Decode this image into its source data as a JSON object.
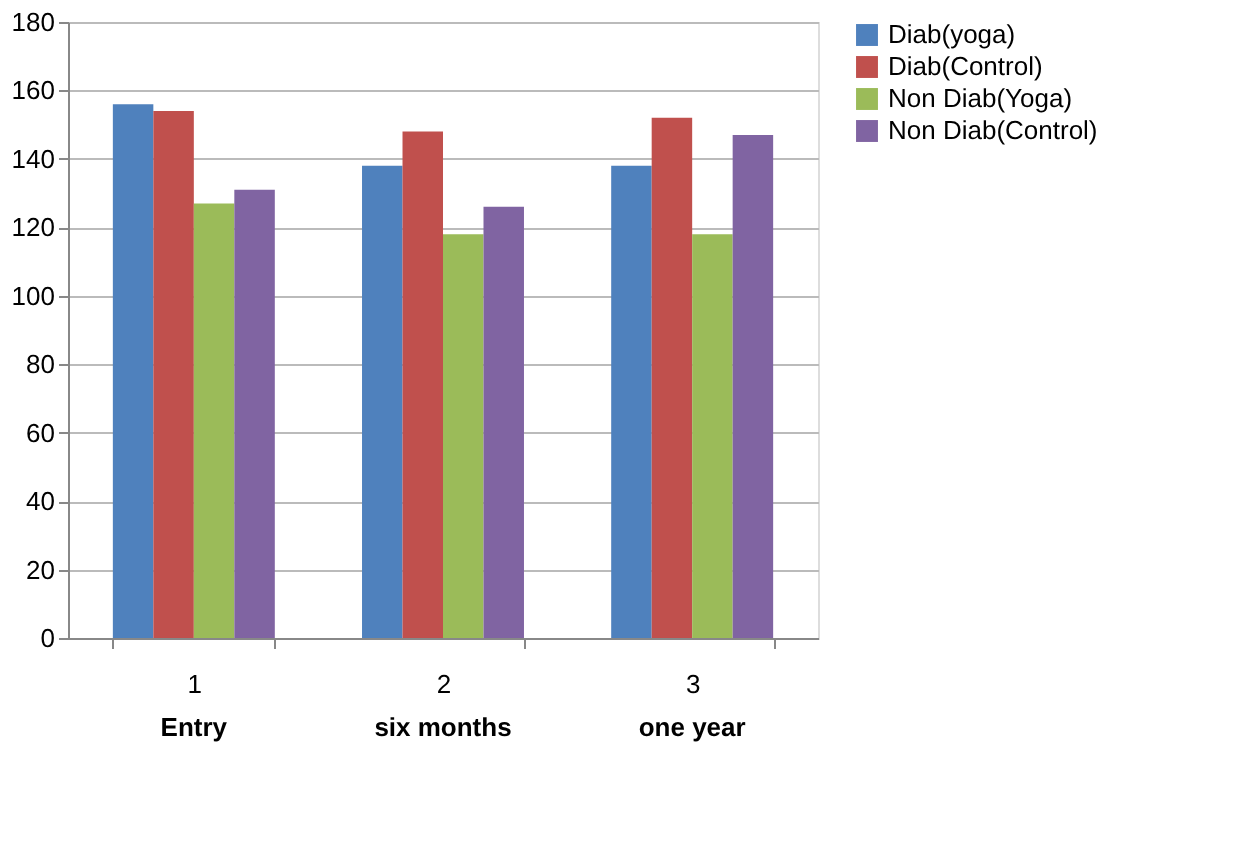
{
  "chart_data": {
    "type": "bar",
    "categories": [
      "1",
      "2",
      "3"
    ],
    "series": [
      {
        "name": "Diab(yoga)",
        "color": "#4f81bd",
        "values": [
          156,
          138,
          138
        ]
      },
      {
        "name": "Diab(Control)",
        "color": "#c0504d",
        "values": [
          154,
          148,
          152
        ]
      },
      {
        "name": "Non Diab(Yoga)",
        "color": "#9bbb59",
        "values": [
          127,
          118,
          118
        ]
      },
      {
        "name": "Non Diab(Control)",
        "color": "#8064a2",
        "values": [
          131,
          126,
          147
        ]
      }
    ],
    "ylim": [
      0,
      180
    ],
    "yticks": [
      0,
      20,
      40,
      60,
      80,
      100,
      120,
      140,
      160,
      180
    ],
    "grid": "y",
    "legend": "right",
    "annotations": [
      "Entry",
      "six months",
      "one year"
    ]
  }
}
